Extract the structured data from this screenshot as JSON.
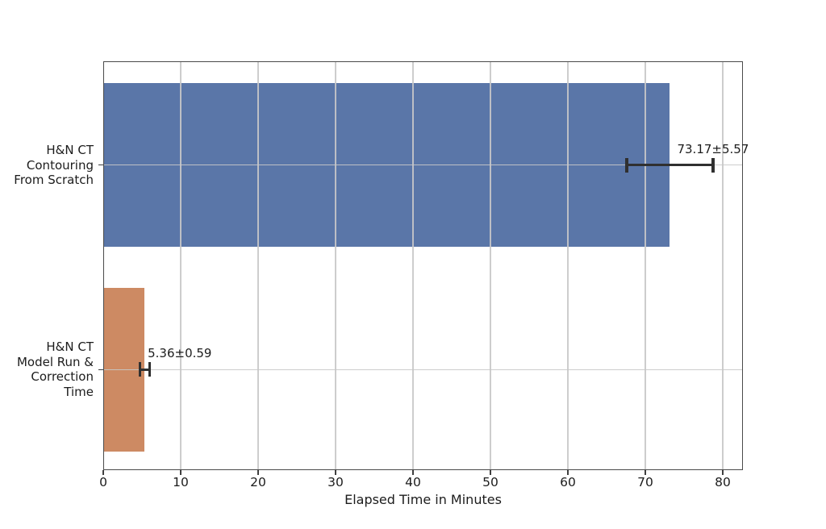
{
  "chart_data": {
    "type": "bar",
    "orientation": "horizontal",
    "title": "",
    "xlabel": "Elapsed Time in Minutes",
    "ylabel": "",
    "grid": true,
    "legend": false,
    "xlim": [
      0,
      82.6
    ],
    "xticks": [
      0,
      10,
      20,
      30,
      40,
      50,
      60,
      70,
      80
    ],
    "bar_relative_height": 0.8,
    "categories": [
      {
        "label_lines": [
          "H&N CT",
          "Contouring",
          "From Scratch"
        ],
        "value": 73.17,
        "error": 5.57,
        "annotation": "73.17±5.57",
        "annotation_align": "center",
        "color": "#5a76a8"
      },
      {
        "label_lines": [
          "H&N CT",
          "Model Run &",
          "Correction",
          "Time"
        ],
        "value": 5.36,
        "error": 0.59,
        "annotation": "5.36±0.59",
        "annotation_align": "left",
        "color": "#cd8a63"
      }
    ],
    "colors": {
      "grid": "#c8c8c8",
      "spine": "#4a4a4a",
      "error_bar": "#303030",
      "text": "#1c1c1c",
      "background": "#ffffff"
    }
  }
}
